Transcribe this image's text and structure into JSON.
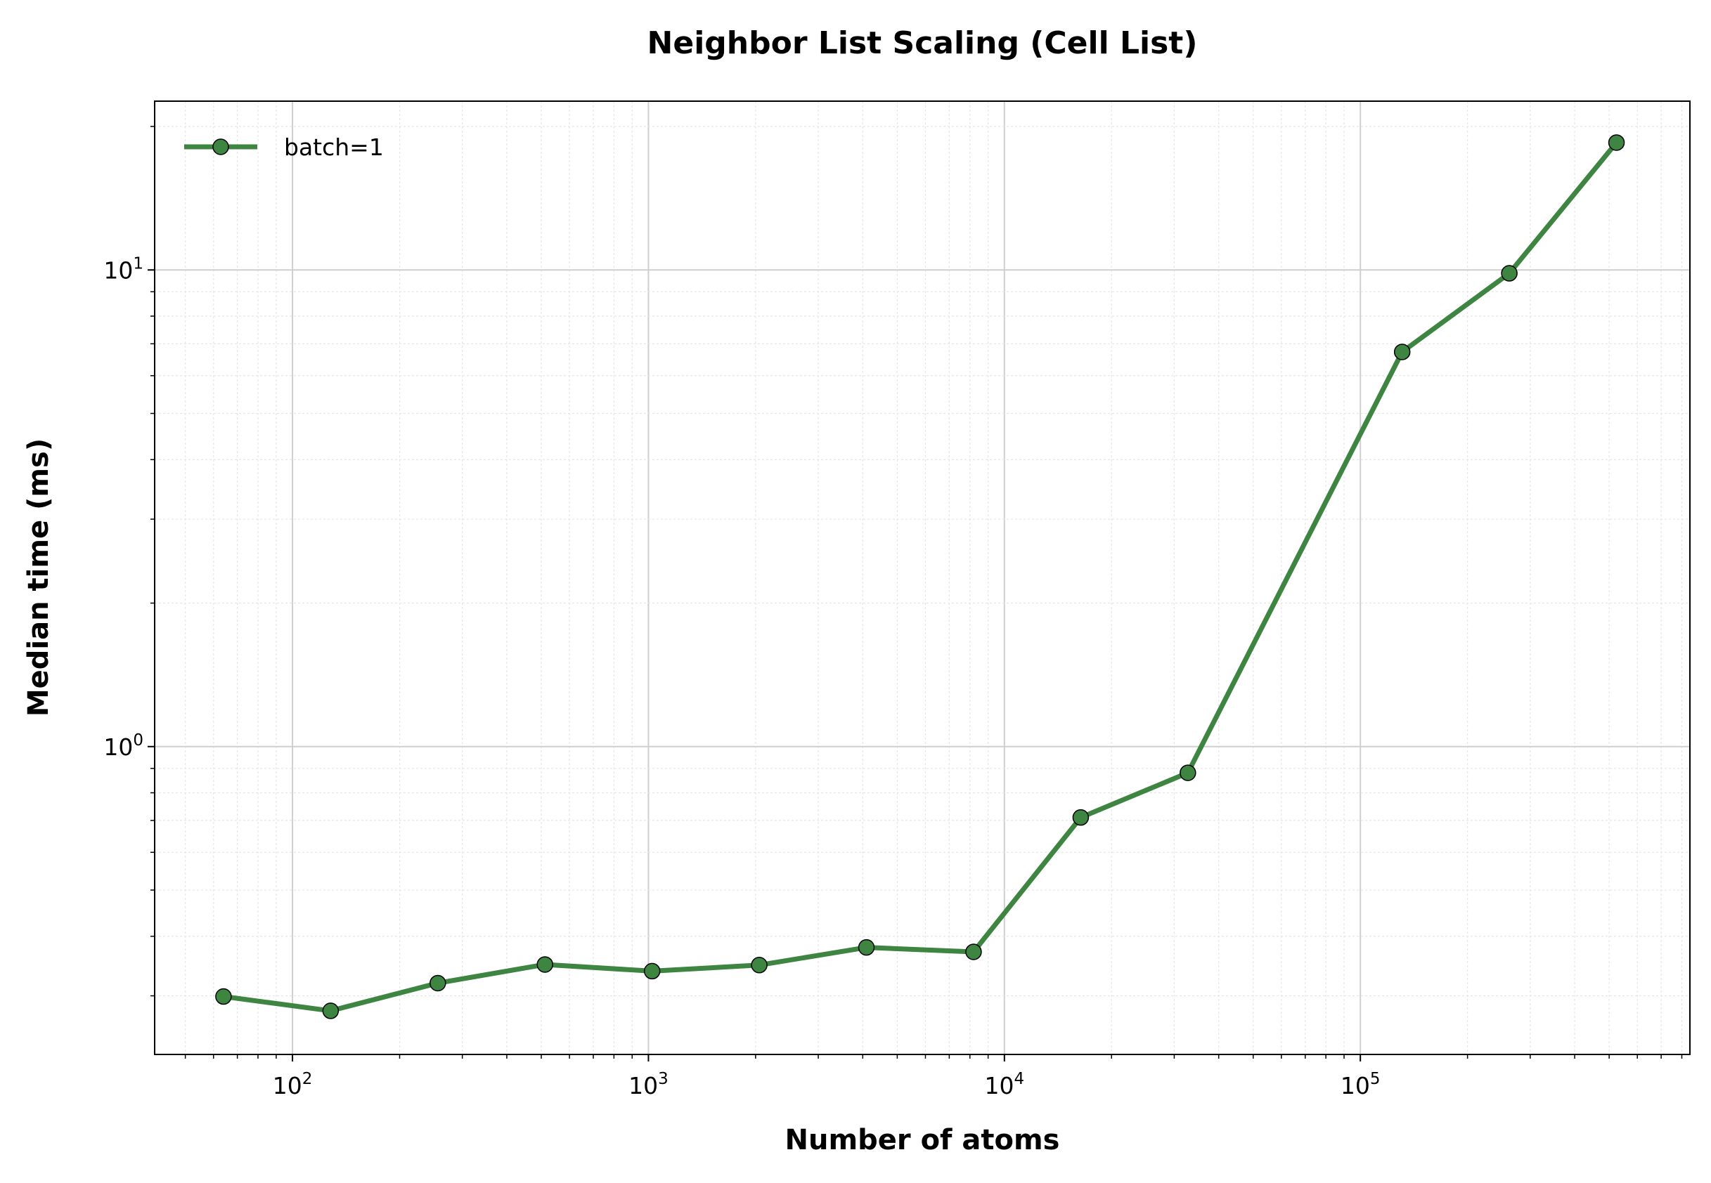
{
  "chart_data": {
    "type": "line",
    "title": "Neighbor List Scaling (Cell List)",
    "xlabel": "Number of atoms",
    "ylabel": "Median time (ms)",
    "xscale": "log",
    "yscale": "log",
    "xlim": [
      41,
      843000
    ],
    "ylim": [
      0.226,
      22.6
    ],
    "grid": true,
    "legend_position": "top-left",
    "x_ticks": [
      {
        "base": "10",
        "exp": "2",
        "value": 100
      },
      {
        "base": "10",
        "exp": "3",
        "value": 1000
      },
      {
        "base": "10",
        "exp": "4",
        "value": 10000
      },
      {
        "base": "10",
        "exp": "5",
        "value": 100000
      }
    ],
    "y_ticks": [
      {
        "base": "10",
        "exp": "0",
        "value": 1
      },
      {
        "base": "10",
        "exp": "1",
        "value": 10
      }
    ],
    "series": [
      {
        "name": "batch=1",
        "color": "#3d8540",
        "x": [
          64,
          128,
          256,
          512,
          1024,
          2048,
          4096,
          8192,
          16384,
          32768,
          131072,
          262144,
          524288
        ],
        "y": [
          0.299,
          0.279,
          0.319,
          0.349,
          0.338,
          0.348,
          0.379,
          0.371,
          0.71,
          0.881,
          6.73,
          9.84,
          18.5
        ]
      }
    ]
  }
}
